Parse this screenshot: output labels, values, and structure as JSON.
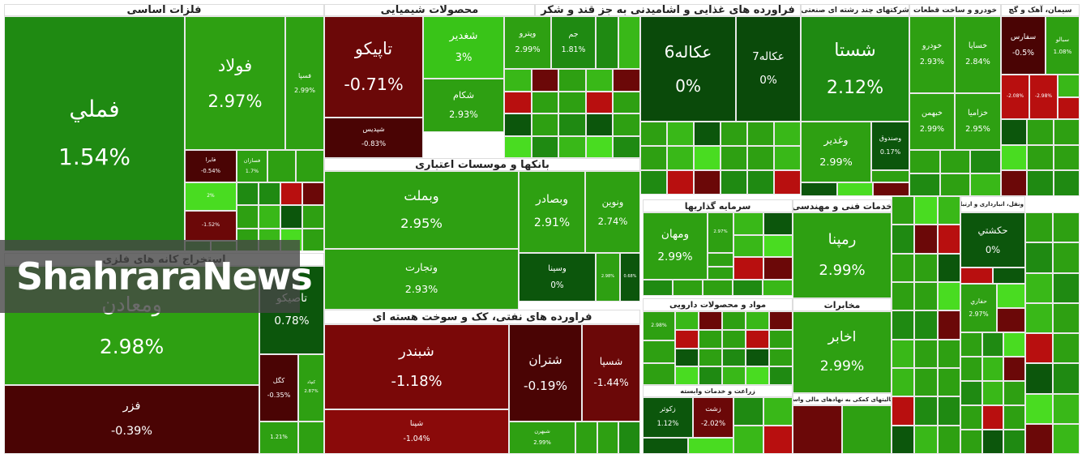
{
  "watermark": "ShahraraNews",
  "sectors": [
    {
      "title": "فلزات اساسی",
      "cells": [
        {
          "name": "فملي",
          "change": "1.54%"
        },
        {
          "name": "فولاد",
          "change": "2.97%"
        },
        {
          "name": "فسپا",
          "change": "2.99%"
        },
        {
          "name": "فايرا",
          "change": "-0.54%"
        },
        {
          "name": "فسازان",
          "change": "1.7%"
        },
        {
          "change": "2%"
        },
        {
          "change": "-1.52%"
        }
      ]
    },
    {
      "title": "استخراج کانه های فلزی",
      "cells": [
        {
          "name": "ومعادن",
          "change": "2.98%"
        },
        {
          "name": "تاصيكو",
          "change": "0.78%"
        },
        {
          "name": "كگل",
          "change": "-0.35%"
        },
        {
          "name": "كچاد",
          "change": "2.87%"
        },
        {
          "name": "فزر",
          "change": "-0.39%"
        },
        {
          "change": "1.21%"
        }
      ]
    },
    {
      "title": "محصولات شیمیایی",
      "cells": [
        {
          "name": "تاپيكو",
          "change": "-0.71%"
        },
        {
          "name": "شپديس",
          "change": "-0.83%"
        },
        {
          "name": "شغدير",
          "change": "3%"
        },
        {
          "name": "شكام",
          "change": "2.93%"
        },
        {
          "name": "وپترو",
          "change": "2.99%"
        },
        {
          "name": "جم",
          "change": "1.81%"
        }
      ]
    },
    {
      "title": "فرآورده های غذایی و آشامیدنی به جز قند و شکر",
      "cells": [
        {
          "name": "عكاله6",
          "change": "0%"
        },
        {
          "name": "عكاله7",
          "change": "0%"
        }
      ]
    },
    {
      "title": "شرکتهای چند رشته ای صنعتی",
      "cells": [
        {
          "name": "شستا",
          "change": "2.12%"
        },
        {
          "name": "وغدير",
          "change": "2.99%"
        },
        {
          "name": "وصندوق",
          "change": "0.17%"
        }
      ]
    },
    {
      "title": "خودرو و ساخت قطعات",
      "cells": [
        {
          "name": "خودرو",
          "change": "2.93%"
        },
        {
          "name": "خساپا",
          "change": "2.84%"
        },
        {
          "name": "خبهمن",
          "change": "2.99%"
        },
        {
          "name": "خزاميا",
          "change": "2.95%"
        }
      ]
    },
    {
      "title": "سیمان، آهک و گچ",
      "cells": [
        {
          "name": "سفارس",
          "change": "-0.5%"
        },
        {
          "name": "سبالو",
          "change": "1.08%"
        },
        {
          "change": "-2.08%"
        },
        {
          "change": "-2.98%"
        }
      ]
    },
    {
      "title": "بانکها و موسسات اعتباری",
      "cells": [
        {
          "name": "وبملت",
          "change": "2.95%"
        },
        {
          "name": "وتجارت",
          "change": "2.93%"
        },
        {
          "name": "وبصادر",
          "change": "2.91%"
        },
        {
          "name": "ونوين",
          "change": "2.74%"
        },
        {
          "name": "وسينا",
          "change": "0%"
        },
        {
          "change": "2.98%"
        },
        {
          "change": "0.68%"
        }
      ]
    },
    {
      "title": "فراورده های نفتی، کک و سوخت هسته ای",
      "cells": [
        {
          "name": "شبندر",
          "change": "-1.18%"
        },
        {
          "name": "شپنا",
          "change": "-1.04%"
        },
        {
          "name": "شتران",
          "change": "-0.19%"
        },
        {
          "name": "شسپا",
          "change": "-1.44%"
        },
        {
          "name": "شبهرن",
          "change": "2.99%"
        }
      ]
    },
    {
      "title": "سرمایه گذاریها",
      "cells": [
        {
          "name": "ومهان",
          "change": "2.99%"
        },
        {
          "change": "2.97%"
        }
      ]
    },
    {
      "title": "خدمات فنی و مهندسی",
      "cells": [
        {
          "name": "رمپنا",
          "change": "2.99%"
        }
      ]
    },
    {
      "title": "مواد و محصولات دارویی",
      "cells": [
        {
          "change": "2.98%"
        }
      ]
    },
    {
      "title": "مخابرات",
      "cells": [
        {
          "name": "اخابر",
          "change": "2.99%"
        }
      ]
    },
    {
      "title": "زراعت و خدمات وابسته",
      "cells": [
        {
          "name": "زكوثر",
          "change": "1.12%"
        },
        {
          "name": "زشت",
          "change": "-2.02%"
        }
      ]
    },
    {
      "title": "فعالیتهای کمکی به نهادهای مالی واسط",
      "cells": []
    },
    {
      "title": "حمل ونقل، انبارداری و ارتباطات",
      "cells": [
        {
          "name": "حكشتي",
          "change": "0%"
        },
        {
          "name": "حفاري",
          "change": "2.97%"
        }
      ]
    }
  ]
}
